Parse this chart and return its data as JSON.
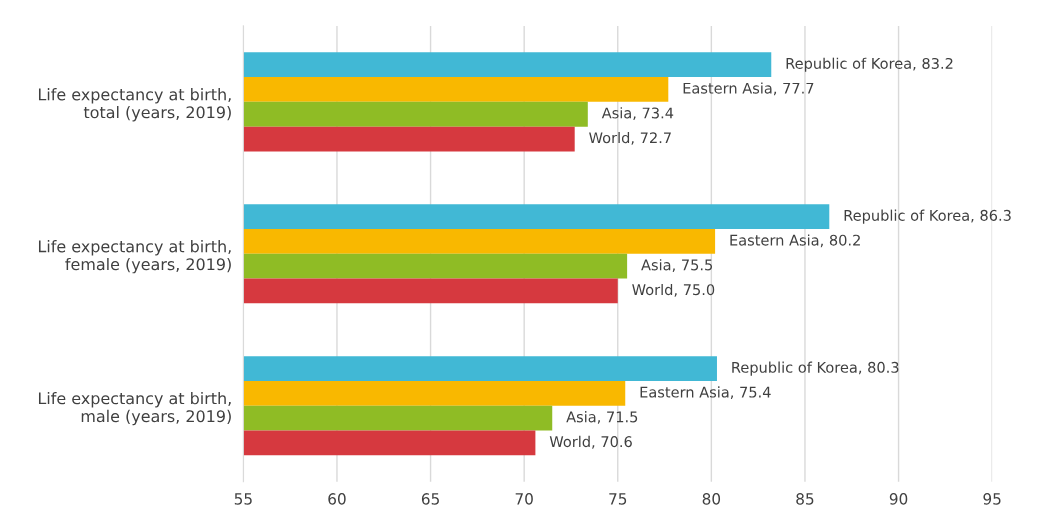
{
  "chart_data": {
    "type": "bar",
    "orientation": "horizontal",
    "categories": [
      "Life expectancy at birth,\ntotal (years, 2019)",
      "Life expectancy at birth,\nfemale (years, 2019)",
      "Life expectancy at birth,\nmale (years, 2019)"
    ],
    "series": [
      {
        "color": "#41b8d5",
        "values": [
          83.2,
          86.3,
          80.3
        ],
        "value_labels": [
          "Republic of Korea, 83.2",
          "Republic of Korea, 86.3",
          "Republic of Korea, 80.3"
        ]
      },
      {
        "color": "#f9b800",
        "values": [
          77.7,
          80.2,
          75.4
        ],
        "value_labels": [
          "Eastern Asia, 77.7",
          "Eastern Asia, 80.2",
          "Eastern Asia, 75.4"
        ]
      },
      {
        "color": "#8fbc25",
        "values": [
          73.4,
          75.5,
          71.5
        ],
        "value_labels": [
          "Asia, 73.4",
          "Asia, 75.5",
          "Asia, 71.5"
        ]
      },
      {
        "color": "#d6393f",
        "values": [
          72.7,
          75.0,
          70.6
        ],
        "value_labels": [
          "World, 72.7",
          "World, 75.0",
          "World, 70.6"
        ]
      }
    ],
    "xlim": [
      55,
      95
    ],
    "xticks": [
      55,
      60,
      65,
      70,
      75,
      80,
      85,
      90,
      95
    ],
    "grid": "x",
    "legend": false
  }
}
